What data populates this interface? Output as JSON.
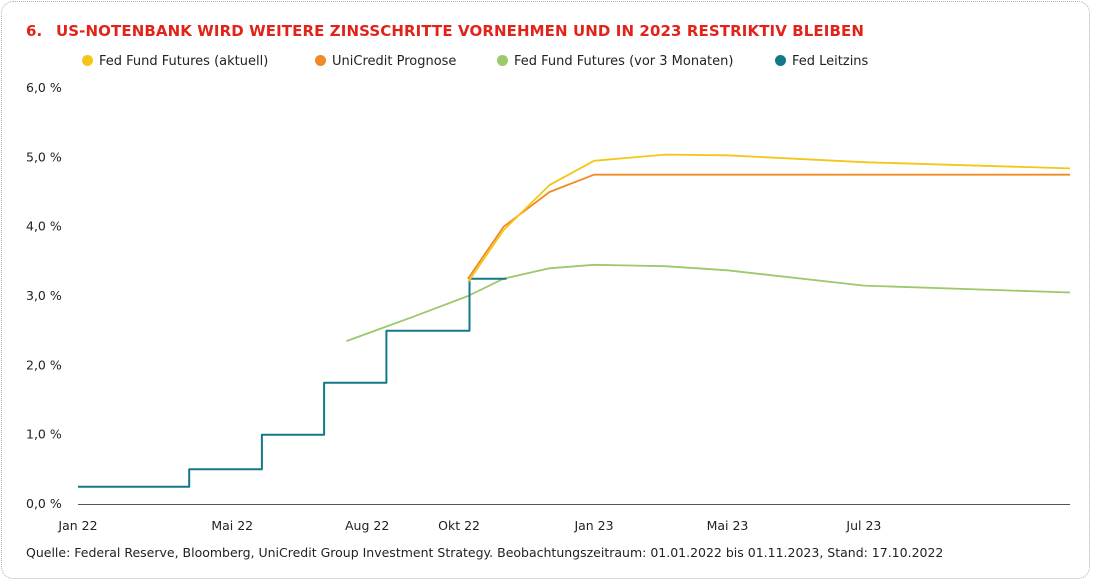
{
  "header": {
    "number": "6.",
    "title": "US-NOTENBANK WIRD WEITERE ZINSSCHRITTE VORNEHMEN UND IN 2023 RESTRIKTIV BLEIBEN"
  },
  "footer": {
    "source": "Quelle: Federal Reserve, Bloomberg, UniCredit Group Investment Strategy. Beobachtungszeitraum: 01.01.2022 bis 01.11.2023, Stand: 17.10.2022"
  },
  "chart_data": {
    "type": "line",
    "title": "US-NOTENBANK WIRD WEITERE ZINSSCHRITTE VORNEHMEN UND IN 2023 RESTRIKTIV BLEIBEN",
    "x_axis": {
      "type": "date",
      "range": [
        "2022-01-01",
        "2023-11-01"
      ],
      "tick_labels": [
        "Jan 22",
        "Mai 22",
        "Aug 22",
        "Okt 22",
        "Jan 23",
        "Mai 23",
        "Jul 23"
      ],
      "tick_dates": [
        "2022-01-01",
        "2022-04-15",
        "2022-07-15",
        "2022-09-15",
        "2022-12-15",
        "2023-03-15",
        "2023-06-15"
      ]
    },
    "y_axis": {
      "range": [
        0,
        6
      ],
      "ticks": [
        0,
        1,
        2,
        3,
        4,
        5,
        6
      ],
      "tick_labels": [
        "0,0 %",
        "1,0 %",
        "2,0 %",
        "3,0 %",
        "4,0 %",
        "5,0 %",
        "6,0 %"
      ]
    },
    "grid": false,
    "legend_position": "top",
    "series": [
      {
        "name": "Fed Fund Futures (aktuell)",
        "color": "#f5c518",
        "points": [
          [
            "2022-09-21",
            3.2
          ],
          [
            "2022-10-15",
            3.95
          ],
          [
            "2022-11-15",
            4.6
          ],
          [
            "2022-12-15",
            4.95
          ],
          [
            "2023-02-01",
            5.04
          ],
          [
            "2023-03-15",
            5.03
          ],
          [
            "2023-06-15",
            4.93
          ],
          [
            "2023-11-01",
            4.84
          ]
        ]
      },
      {
        "name": "UniCredit Prognose",
        "color": "#f08a24",
        "points": [
          [
            "2022-09-21",
            3.25
          ],
          [
            "2022-10-15",
            4.0
          ],
          [
            "2022-11-15",
            4.5
          ],
          [
            "2022-12-15",
            4.75
          ],
          [
            "2023-11-01",
            4.75
          ]
        ]
      },
      {
        "name": "Fed Fund Futures (vor 3 Monaten)",
        "color": "#9cc96a",
        "points": [
          [
            "2022-07-01",
            2.35
          ],
          [
            "2022-08-15",
            2.7
          ],
          [
            "2022-09-21",
            3.0
          ],
          [
            "2022-10-15",
            3.25
          ],
          [
            "2022-11-15",
            3.4
          ],
          [
            "2022-12-15",
            3.45
          ],
          [
            "2023-02-01",
            3.43
          ],
          [
            "2023-03-15",
            3.37
          ],
          [
            "2023-06-15",
            3.15
          ],
          [
            "2023-11-01",
            3.05
          ]
        ]
      },
      {
        "name": "Fed Leitzins",
        "color": "#13788a",
        "step": true,
        "points": [
          [
            "2022-01-01",
            0.25
          ],
          [
            "2022-03-17",
            0.5
          ],
          [
            "2022-05-05",
            1.0
          ],
          [
            "2022-06-16",
            1.75
          ],
          [
            "2022-07-28",
            2.5
          ],
          [
            "2022-09-22",
            3.25
          ],
          [
            "2022-10-17",
            3.25
          ]
        ]
      }
    ]
  }
}
